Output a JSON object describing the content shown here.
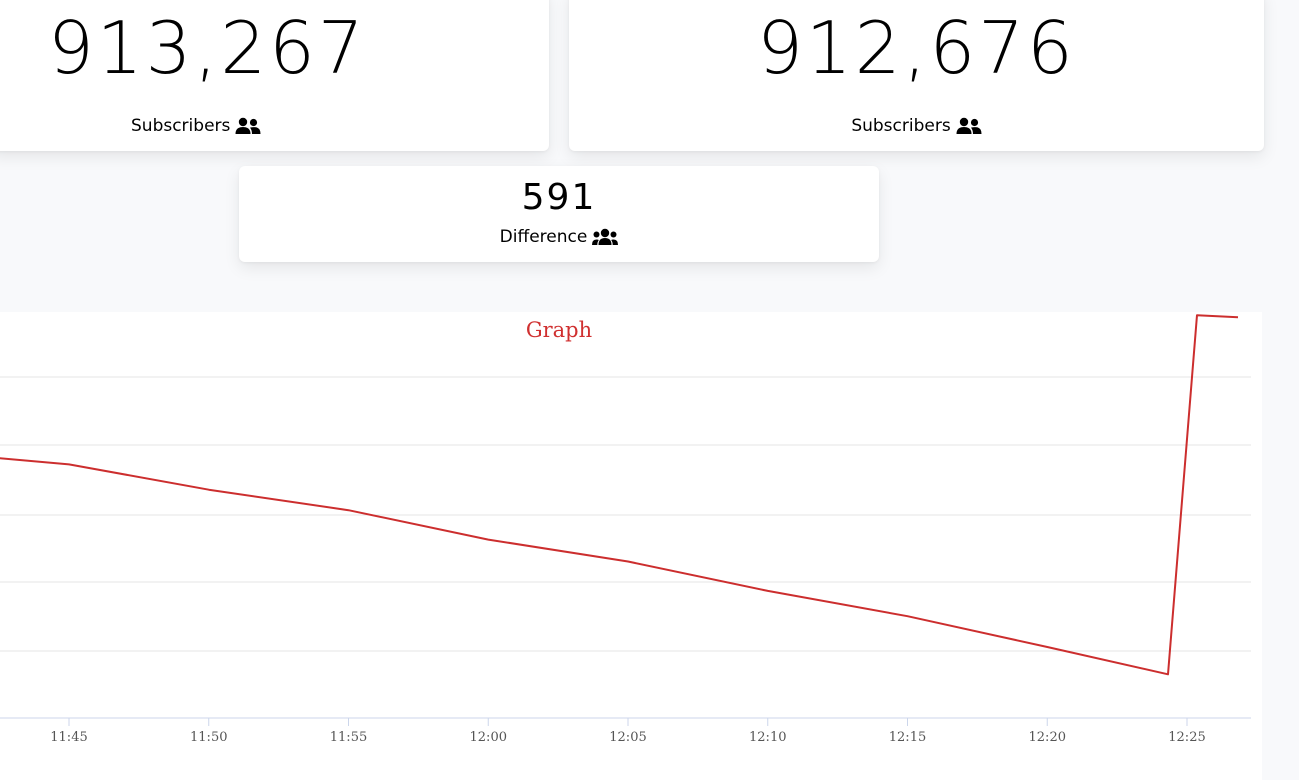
{
  "stats": {
    "left": {
      "count": "913,267",
      "label": "Subscribers",
      "icon": "user-friends-icon"
    },
    "right": {
      "count": "912,676",
      "label": "Subscribers",
      "icon": "user-friends-icon"
    },
    "difference": {
      "count": "591",
      "label": "Difference",
      "icon": "users-icon"
    }
  },
  "chart_data": {
    "type": "line",
    "title": "Graph",
    "title_color": "#d03030",
    "line_color": "#cc2e2e",
    "grid": true,
    "x_ticks": [
      "11:45",
      "11:50",
      "11:55",
      "12:00",
      "12:05",
      "12:10",
      "12:15",
      "12:20",
      "12:25"
    ],
    "series": [
      {
        "values": [
          [
            "11:40",
            1.9
          ],
          [
            "11:45",
            1.72
          ],
          [
            "11:50",
            1.35
          ],
          [
            "11:55",
            1.05
          ],
          [
            "12:00",
            0.62
          ],
          [
            "12:05",
            0.3
          ],
          [
            "12:10",
            -0.13
          ],
          [
            "12:15",
            -0.5
          ],
          [
            "12:20",
            -0.95
          ],
          [
            "12:24",
            -1.35
          ],
          [
            "12:25",
            3.9
          ],
          [
            "12:26",
            3.87
          ]
        ]
      }
    ]
  }
}
